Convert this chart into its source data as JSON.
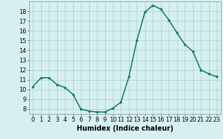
{
  "x": [
    0,
    1,
    2,
    3,
    4,
    5,
    6,
    7,
    8,
    9,
    10,
    11,
    12,
    13,
    14,
    15,
    16,
    17,
    18,
    19,
    20,
    21,
    22,
    23
  ],
  "y": [
    10.3,
    11.2,
    11.2,
    10.5,
    10.2,
    9.5,
    8.0,
    7.8,
    7.7,
    7.7,
    8.1,
    8.7,
    11.3,
    15.0,
    17.9,
    18.6,
    18.2,
    17.1,
    15.8,
    14.6,
    13.9,
    12.0,
    11.6,
    11.3
  ],
  "line_color": "#1a7a6e",
  "marker": "s",
  "marker_size": 2,
  "bg_color": "#d6f0f0",
  "grid_color": "#aacccc",
  "xlabel": "Humidex (Indice chaleur)",
  "xlabel_fontsize": 7,
  "xlim": [
    -0.5,
    23.5
  ],
  "ylim": [
    7.5,
    19.0
  ],
  "yticks": [
    8,
    9,
    10,
    11,
    12,
    13,
    14,
    15,
    16,
    17,
    18
  ],
  "xticks": [
    0,
    1,
    2,
    3,
    4,
    5,
    6,
    7,
    8,
    9,
    10,
    11,
    12,
    13,
    14,
    15,
    16,
    17,
    18,
    19,
    20,
    21,
    22,
    23
  ],
  "tick_fontsize": 6,
  "linewidth": 1.2
}
